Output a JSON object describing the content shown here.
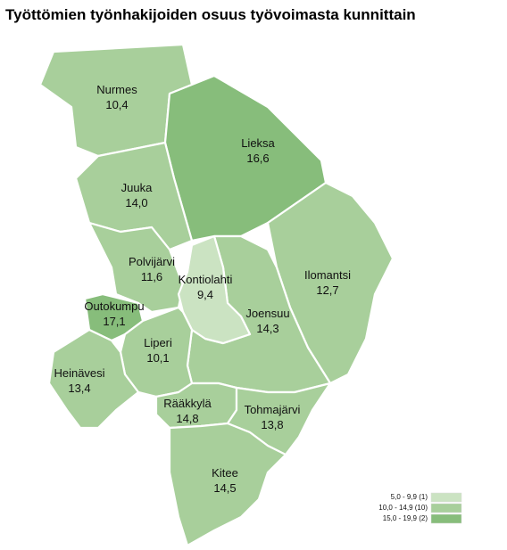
{
  "title": "Työttömien työnhakijoiden osuus työvoimasta kunnittain",
  "regions": [
    {
      "name": "Nurmes",
      "value": 10.4,
      "value_label": "10,4"
    },
    {
      "name": "Lieksa",
      "value": 16.6,
      "value_label": "16,6"
    },
    {
      "name": "Juuka",
      "value": 14.0,
      "value_label": "14,0"
    },
    {
      "name": "Ilomantsi",
      "value": 12.7,
      "value_label": "12,7"
    },
    {
      "name": "Polvijärvi",
      "value": 11.6,
      "value_label": "11,6"
    },
    {
      "name": "Joensuu",
      "value": 14.3,
      "value_label": "14,3"
    },
    {
      "name": "Kontiolahti",
      "value": 9.4,
      "value_label": "9,4"
    },
    {
      "name": "Outokumpu",
      "value": 17.1,
      "value_label": "17,1"
    },
    {
      "name": "Liperi",
      "value": 10.1,
      "value_label": "10,1"
    },
    {
      "name": "Heinävesi",
      "value": 13.4,
      "value_label": "13,4"
    },
    {
      "name": "Rääkkylä",
      "value": 14.8,
      "value_label": "14,8"
    },
    {
      "name": "Tohmajärvi",
      "value": 13.8,
      "value_label": "13,8"
    },
    {
      "name": "Kitee",
      "value": 14.5,
      "value_label": "14,5"
    }
  ],
  "legend": [
    {
      "label": "5,0 - 9,9 (1)",
      "min": 5.0,
      "max": 9.9,
      "color": "#cbe3c2"
    },
    {
      "label": "10,0 - 14,9 (10)",
      "min": 10.0,
      "max": 14.9,
      "color": "#a8cf9b"
    },
    {
      "label": "15,0 - 19,9 (2)",
      "min": 15.0,
      "max": 19.9,
      "color": "#87bd7b"
    }
  ]
}
